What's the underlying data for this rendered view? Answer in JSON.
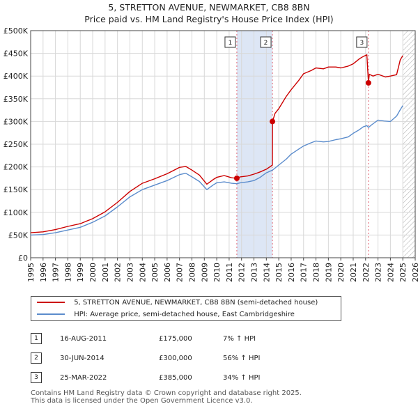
{
  "header": {
    "title_line1": "5, STRETTON AVENUE, NEWMARKET, CB8 8BN",
    "title_line2": "Price paid vs. HM Land Registry's House Price Index (HPI)"
  },
  "chart_data": {
    "type": "line",
    "title": "5, STRETTON AVENUE, NEWMARKET, CB8 8BN — Price paid vs. HM Land Registry's House Price Index (HPI)",
    "xlabel": "",
    "ylabel": "",
    "xlim": [
      1995,
      2026
    ],
    "ylim": [
      0,
      500000
    ],
    "y_ticks": [
      0,
      50000,
      100000,
      150000,
      200000,
      250000,
      300000,
      350000,
      400000,
      450000,
      500000
    ],
    "y_tick_labels": [
      "£0",
      "£50K",
      "£100K",
      "£150K",
      "£200K",
      "£250K",
      "£300K",
      "£350K",
      "£400K",
      "£450K",
      "£500K"
    ],
    "x_ticks": [
      1995,
      1996,
      1997,
      1998,
      1999,
      2000,
      2001,
      2002,
      2003,
      2004,
      2005,
      2006,
      2007,
      2008,
      2009,
      2010,
      2011,
      2012,
      2013,
      2014,
      2015,
      2016,
      2017,
      2018,
      2019,
      2020,
      2021,
      2022,
      2023,
      2024,
      2025,
      2026
    ],
    "x_tick_labels": [
      "1995",
      "1996",
      "1997",
      "1998",
      "1999",
      "2000",
      "2001",
      "2002",
      "2003",
      "2004",
      "2005",
      "2006",
      "2007",
      "2008",
      "2009",
      "2010",
      "2011",
      "2012",
      "2013",
      "2014",
      "2015",
      "2016",
      "2017",
      "2018",
      "2019",
      "2020",
      "2021",
      "2022",
      "2023",
      "2024",
      "2025",
      "2026"
    ],
    "grid": true,
    "colors": {
      "property": "#cc0000",
      "hpi": "#5b8ccc",
      "shade": "#dde6f5",
      "hatch": "#aaaaaa",
      "marker_line": "#e06070"
    },
    "series": [
      {
        "name": "5, STRETTON AVENUE, NEWMARKET, CB8 8BN (semi-detached house)",
        "color": "#cc0000",
        "x": [
          1995.0,
          1996.0,
          1997.0,
          1998.0,
          1999.0,
          2000.0,
          2001.0,
          2002.0,
          2003.0,
          2004.0,
          2005.0,
          2006.0,
          2007.0,
          2007.5,
          2008.0,
          2008.6,
          2009.2,
          2009.7,
          2010.0,
          2010.6,
          2011.2,
          2011.62,
          2011.9,
          2012.5,
          2013.0,
          2013.5,
          2014.0,
          2014.49,
          2014.5,
          2014.7,
          2015.0,
          2015.6,
          2016.0,
          2016.6,
          2017.0,
          2017.6,
          2018.0,
          2018.6,
          2019.0,
          2019.6,
          2020.0,
          2020.6,
          2021.0,
          2021.5,
          2021.8,
          2022.1,
          2022.23,
          2022.3,
          2022.6,
          2023.0,
          2023.6,
          2024.0,
          2024.5,
          2024.8,
          2025.0
        ],
        "y": [
          55000,
          57000,
          62000,
          69000,
          75000,
          86000,
          101000,
          122000,
          146000,
          164000,
          174000,
          185000,
          199000,
          201000,
          193000,
          182000,
          162000,
          172000,
          177000,
          181000,
          176000,
          175000,
          178000,
          180000,
          184000,
          189000,
          195000,
          204000,
          300000,
          318000,
          328000,
          355000,
          370000,
          390000,
          405000,
          412000,
          418000,
          416000,
          420000,
          420000,
          418000,
          422000,
          427000,
          438000,
          443000,
          447000,
          385000,
          404000,
          400000,
          404000,
          398000,
          400000,
          403000,
          436000,
          445000
        ]
      },
      {
        "name": "HPI: Average price, semi-detached house, East Cambridgeshire",
        "color": "#5b8ccc",
        "x": [
          1995.0,
          1996.0,
          1997.0,
          1998.0,
          1999.0,
          2000.0,
          2001.0,
          2002.0,
          2003.0,
          2004.0,
          2005.0,
          2006.0,
          2007.0,
          2007.5,
          2008.0,
          2008.6,
          2009.2,
          2009.7,
          2010.0,
          2010.6,
          2011.2,
          2011.62,
          2011.9,
          2012.5,
          2013.0,
          2013.5,
          2014.0,
          2014.5,
          2015.0,
          2015.6,
          2016.0,
          2016.6,
          2017.0,
          2017.6,
          2018.0,
          2018.6,
          2019.0,
          2019.6,
          2020.0,
          2020.6,
          2021.0,
          2021.5,
          2021.8,
          2022.1,
          2022.23,
          2022.5,
          2023.0,
          2023.5,
          2024.0,
          2024.5,
          2024.8,
          2025.0
        ],
        "y": [
          50000,
          51000,
          55000,
          61000,
          67000,
          78000,
          92000,
          112000,
          134000,
          150000,
          160000,
          170000,
          183000,
          186000,
          178000,
          168000,
          150000,
          160000,
          165000,
          167000,
          164000,
          163000,
          165000,
          167000,
          170000,
          177000,
          187000,
          193000,
          204000,
          217000,
          228000,
          239000,
          246000,
          253000,
          257000,
          255000,
          256000,
          260000,
          262000,
          266000,
          274000,
          282000,
          288000,
          291000,
          287000,
          293000,
          303000,
          301000,
          300000,
          312000,
          326000,
          335000
        ]
      }
    ],
    "sale_markers": [
      {
        "label": "1",
        "x": 2011.62,
        "y": 175000
      },
      {
        "label": "2",
        "x": 2014.49,
        "y": 300000
      },
      {
        "label": "3",
        "x": 2022.23,
        "y": 385000
      }
    ],
    "shaded_range": [
      2011.62,
      2014.49
    ],
    "forecast_start": 2025.0
  },
  "legend": {
    "property_label": "5, STRETTON AVENUE, NEWMARKET, CB8 8BN (semi-detached house)",
    "hpi_label": "HPI: Average price, semi-detached house, East Cambridgeshire"
  },
  "sales": [
    {
      "num": "1",
      "date": "16-AUG-2011",
      "price": "£175,000",
      "hpi": "7% ↑ HPI"
    },
    {
      "num": "2",
      "date": "30-JUN-2014",
      "price": "£300,000",
      "hpi": "56% ↑ HPI"
    },
    {
      "num": "3",
      "date": "25-MAR-2022",
      "price": "£385,000",
      "hpi": "34% ↑ HPI"
    }
  ],
  "footer": {
    "line1": "Contains HM Land Registry data © Crown copyright and database right 2025.",
    "line2": "This data is licensed under the Open Government Licence v3.0."
  }
}
